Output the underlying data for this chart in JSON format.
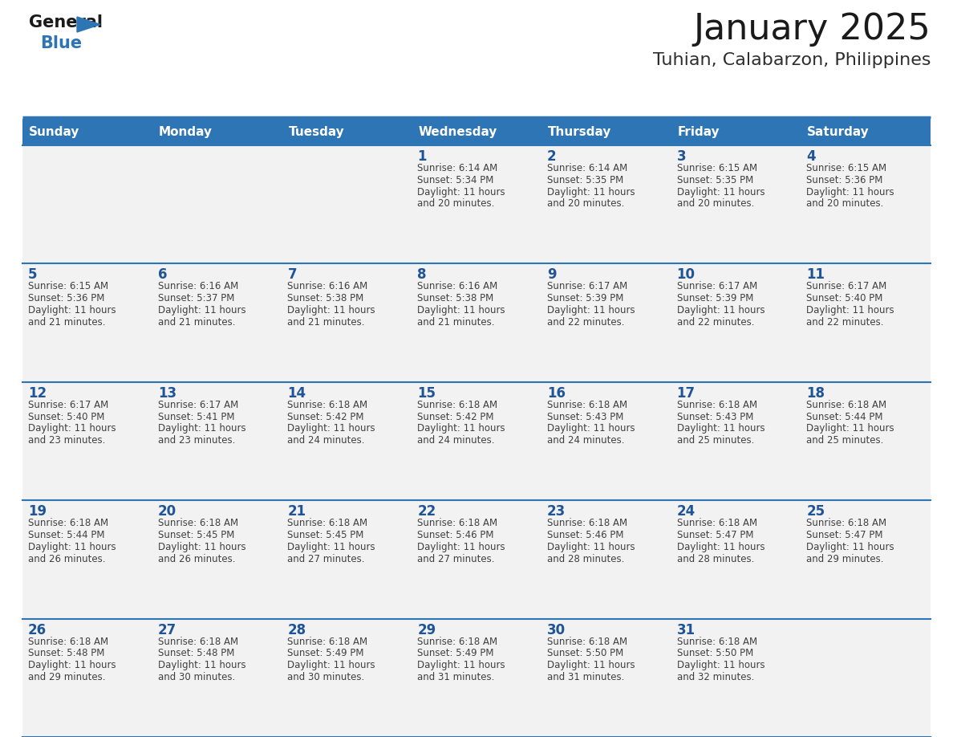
{
  "title": "January 2025",
  "subtitle": "Tuhian, Calabarzon, Philippines",
  "header_bg": "#2E75B6",
  "header_text_color": "#FFFFFF",
  "day_headers": [
    "Sunday",
    "Monday",
    "Tuesday",
    "Wednesday",
    "Thursday",
    "Friday",
    "Saturday"
  ],
  "cell_bg": "#F2F2F2",
  "row_line_color": "#2E75B6",
  "text_color": "#404040",
  "day_num_color": "#1F5496",
  "calendar": [
    [
      {
        "day": "",
        "sunrise": "",
        "sunset": "",
        "daylight": ""
      },
      {
        "day": "",
        "sunrise": "",
        "sunset": "",
        "daylight": ""
      },
      {
        "day": "",
        "sunrise": "",
        "sunset": "",
        "daylight": ""
      },
      {
        "day": "1",
        "sunrise": "6:14 AM",
        "sunset": "5:34 PM",
        "daylight": "11 hours and 20 minutes."
      },
      {
        "day": "2",
        "sunrise": "6:14 AM",
        "sunset": "5:35 PM",
        "daylight": "11 hours and 20 minutes."
      },
      {
        "day": "3",
        "sunrise": "6:15 AM",
        "sunset": "5:35 PM",
        "daylight": "11 hours and 20 minutes."
      },
      {
        "day": "4",
        "sunrise": "6:15 AM",
        "sunset": "5:36 PM",
        "daylight": "11 hours and 20 minutes."
      }
    ],
    [
      {
        "day": "5",
        "sunrise": "6:15 AM",
        "sunset": "5:36 PM",
        "daylight": "11 hours and 21 minutes."
      },
      {
        "day": "6",
        "sunrise": "6:16 AM",
        "sunset": "5:37 PM",
        "daylight": "11 hours and 21 minutes."
      },
      {
        "day": "7",
        "sunrise": "6:16 AM",
        "sunset": "5:38 PM",
        "daylight": "11 hours and 21 minutes."
      },
      {
        "day": "8",
        "sunrise": "6:16 AM",
        "sunset": "5:38 PM",
        "daylight": "11 hours and 21 minutes."
      },
      {
        "day": "9",
        "sunrise": "6:17 AM",
        "sunset": "5:39 PM",
        "daylight": "11 hours and 22 minutes."
      },
      {
        "day": "10",
        "sunrise": "6:17 AM",
        "sunset": "5:39 PM",
        "daylight": "11 hours and 22 minutes."
      },
      {
        "day": "11",
        "sunrise": "6:17 AM",
        "sunset": "5:40 PM",
        "daylight": "11 hours and 22 minutes."
      }
    ],
    [
      {
        "day": "12",
        "sunrise": "6:17 AM",
        "sunset": "5:40 PM",
        "daylight": "11 hours and 23 minutes."
      },
      {
        "day": "13",
        "sunrise": "6:17 AM",
        "sunset": "5:41 PM",
        "daylight": "11 hours and 23 minutes."
      },
      {
        "day": "14",
        "sunrise": "6:18 AM",
        "sunset": "5:42 PM",
        "daylight": "11 hours and 24 minutes."
      },
      {
        "day": "15",
        "sunrise": "6:18 AM",
        "sunset": "5:42 PM",
        "daylight": "11 hours and 24 minutes."
      },
      {
        "day": "16",
        "sunrise": "6:18 AM",
        "sunset": "5:43 PM",
        "daylight": "11 hours and 24 minutes."
      },
      {
        "day": "17",
        "sunrise": "6:18 AM",
        "sunset": "5:43 PM",
        "daylight": "11 hours and 25 minutes."
      },
      {
        "day": "18",
        "sunrise": "6:18 AM",
        "sunset": "5:44 PM",
        "daylight": "11 hours and 25 minutes."
      }
    ],
    [
      {
        "day": "19",
        "sunrise": "6:18 AM",
        "sunset": "5:44 PM",
        "daylight": "11 hours and 26 minutes."
      },
      {
        "day": "20",
        "sunrise": "6:18 AM",
        "sunset": "5:45 PM",
        "daylight": "11 hours and 26 minutes."
      },
      {
        "day": "21",
        "sunrise": "6:18 AM",
        "sunset": "5:45 PM",
        "daylight": "11 hours and 27 minutes."
      },
      {
        "day": "22",
        "sunrise": "6:18 AM",
        "sunset": "5:46 PM",
        "daylight": "11 hours and 27 minutes."
      },
      {
        "day": "23",
        "sunrise": "6:18 AM",
        "sunset": "5:46 PM",
        "daylight": "11 hours and 28 minutes."
      },
      {
        "day": "24",
        "sunrise": "6:18 AM",
        "sunset": "5:47 PM",
        "daylight": "11 hours and 28 minutes."
      },
      {
        "day": "25",
        "sunrise": "6:18 AM",
        "sunset": "5:47 PM",
        "daylight": "11 hours and 29 minutes."
      }
    ],
    [
      {
        "day": "26",
        "sunrise": "6:18 AM",
        "sunset": "5:48 PM",
        "daylight": "11 hours and 29 minutes."
      },
      {
        "day": "27",
        "sunrise": "6:18 AM",
        "sunset": "5:48 PM",
        "daylight": "11 hours and 30 minutes."
      },
      {
        "day": "28",
        "sunrise": "6:18 AM",
        "sunset": "5:49 PM",
        "daylight": "11 hours and 30 minutes."
      },
      {
        "day": "29",
        "sunrise": "6:18 AM",
        "sunset": "5:49 PM",
        "daylight": "11 hours and 31 minutes."
      },
      {
        "day": "30",
        "sunrise": "6:18 AM",
        "sunset": "5:50 PM",
        "daylight": "11 hours and 31 minutes."
      },
      {
        "day": "31",
        "sunrise": "6:18 AM",
        "sunset": "5:50 PM",
        "daylight": "11 hours and 32 minutes."
      },
      {
        "day": "",
        "sunrise": "",
        "sunset": "",
        "daylight": ""
      }
    ]
  ],
  "logo_triangle_color": "#2E75B6",
  "logo_general_color": "#1A1A1A",
  "logo_blue_color": "#2E75B6",
  "fig_width": 11.88,
  "fig_height": 9.18,
  "dpi": 100
}
